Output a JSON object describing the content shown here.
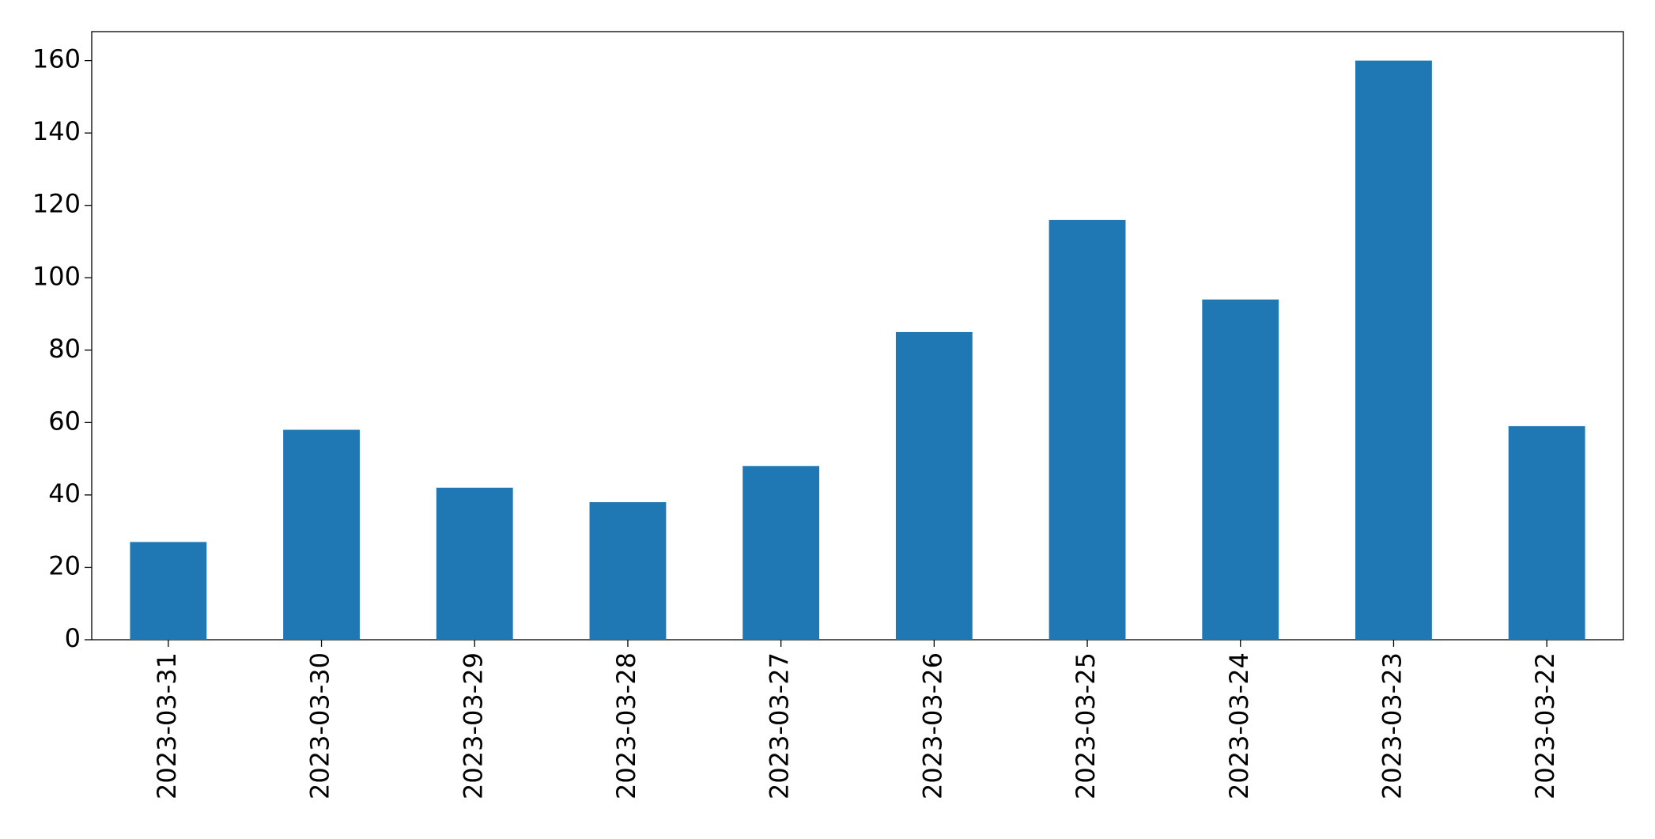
{
  "chart_data": {
    "type": "bar",
    "categories": [
      "2023-03-31",
      "2023-03-30",
      "2023-03-29",
      "2023-03-28",
      "2023-03-27",
      "2023-03-26",
      "2023-03-25",
      "2023-03-24",
      "2023-03-23",
      "2023-03-22"
    ],
    "values": [
      27,
      58,
      42,
      38,
      48,
      85,
      116,
      94,
      160,
      59
    ],
    "color": "#1f77b4",
    "ylim": [
      0,
      168
    ],
    "yticks": [
      0,
      20,
      40,
      60,
      80,
      100,
      120,
      140,
      160
    ],
    "grid": false
  }
}
